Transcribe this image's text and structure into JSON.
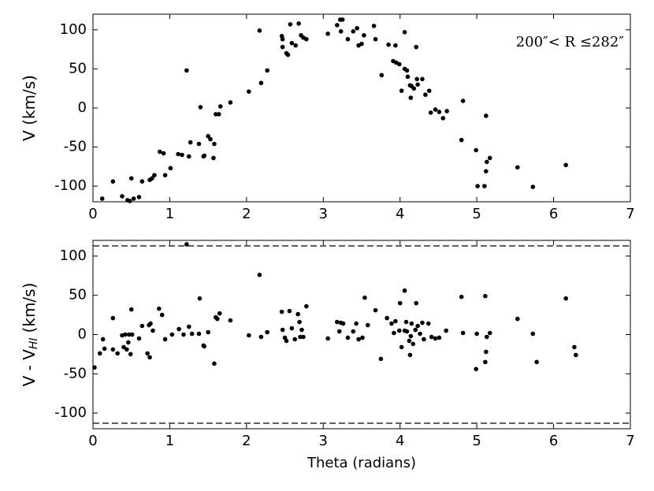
{
  "chart_data": [
    {
      "type": "scatter",
      "ylabel": "V (km/s)",
      "annotation": "200″< R  ≤282″",
      "color": "#000000",
      "xlim": [
        0,
        7
      ],
      "ylim": [
        -120,
        120
      ],
      "xticks": [
        0,
        1,
        2,
        3,
        4,
        5,
        6,
        7
      ],
      "yticks": [
        -100,
        -50,
        0,
        50,
        100
      ],
      "x": [
        0.12,
        0.26,
        0.38,
        0.45,
        0.48,
        0.5,
        0.53,
        0.6,
        0.64,
        0.74,
        0.77,
        0.8,
        0.87,
        0.92,
        0.94,
        1.01,
        1.11,
        1.16,
        1.22,
        1.25,
        1.27,
        1.38,
        1.4,
        1.44,
        1.45,
        1.5,
        1.53,
        1.57,
        1.58,
        1.6,
        1.64,
        1.66,
        1.79,
        2.03,
        2.17,
        2.19,
        2.27,
        2.46,
        2.47,
        2.47,
        2.52,
        2.54,
        2.57,
        2.59,
        2.64,
        2.68,
        2.71,
        2.74,
        2.78,
        3.06,
        3.18,
        3.22,
        3.25,
        3.23,
        3.32,
        3.39,
        3.44,
        3.46,
        3.5,
        3.53,
        3.66,
        3.68,
        3.76,
        3.85,
        3.91,
        3.94,
        3.95,
        3.99,
        4.02,
        4.06,
        4.06,
        4.09,
        4.1,
        4.14,
        4.13,
        4.15,
        4.18,
        4.21,
        4.22,
        4.23,
        4.29,
        4.33,
        4.38,
        4.4,
        4.46,
        4.51,
        4.56,
        4.61,
        4.82,
        4.8,
        4.99,
        5.01,
        5.1,
        5.12,
        5.13,
        5.12,
        5.17,
        5.53,
        5.73,
        6.16
      ],
      "values": [
        -116,
        -94,
        -113,
        -118,
        -119,
        -90,
        -116,
        -114,
        -94,
        -92,
        -90,
        -86,
        -56,
        -58,
        -86,
        -77,
        -59,
        -60,
        48,
        -62,
        -44,
        -46,
        1,
        -62,
        -61,
        -36,
        -40,
        -64,
        -46,
        -8,
        -8,
        2,
        7,
        21,
        99,
        32,
        48,
        92,
        88,
        78,
        70,
        68,
        107,
        83,
        80,
        108,
        93,
        90,
        88,
        95,
        106,
        113,
        113,
        98,
        88,
        98,
        102,
        80,
        82,
        93,
        105,
        88,
        42,
        81,
        60,
        80,
        58,
        56,
        22,
        97,
        50,
        48,
        40,
        13,
        29,
        28,
        25,
        78,
        37,
        30,
        37,
        17,
        22,
        -6,
        -2,
        -5,
        -13,
        -4,
        9,
        -41,
        -54,
        -100,
        -100,
        -81,
        -69,
        -10,
        -64,
        -76,
        -101,
        -73
      ]
    },
    {
      "type": "scatter",
      "xlabel": "Theta (radians)",
      "ylabel": "V - V",
      "ylabel_sub": "HI",
      "ylabel_unit": "(km/s)",
      "color": "#000000",
      "xlim": [
        0,
        7
      ],
      "ylim": [
        -120,
        120
      ],
      "xticks": [
        0,
        1,
        2,
        3,
        4,
        5,
        6,
        7
      ],
      "yticks": [
        -100,
        -50,
        0,
        50,
        100
      ],
      "hlines": [
        113,
        -113
      ],
      "x": [
        0.02,
        0.09,
        0.13,
        0.15,
        0.26,
        0.26,
        0.32,
        0.38,
        0.4,
        0.42,
        0.44,
        0.46,
        0.49,
        0.47,
        0.5,
        0.51,
        0.6,
        0.64,
        0.71,
        0.73,
        0.74,
        0.75,
        0.78,
        0.86,
        0.9,
        0.94,
        1.03,
        1.12,
        1.18,
        1.22,
        1.25,
        1.29,
        1.39,
        1.38,
        1.44,
        1.45,
        1.5,
        1.58,
        1.6,
        1.62,
        1.65,
        1.79,
        2.03,
        2.17,
        2.19,
        2.27,
        2.46,
        2.47,
        2.5,
        2.52,
        2.56,
        2.59,
        2.63,
        2.69,
        2.67,
        2.7,
        2.72,
        2.74,
        2.78,
        3.06,
        3.18,
        3.21,
        3.23,
        3.26,
        3.32,
        3.39,
        3.43,
        3.46,
        3.51,
        3.54,
        3.58,
        3.68,
        3.75,
        3.83,
        3.89,
        3.92,
        3.94,
        3.99,
        4.0,
        4.02,
        4.06,
        4.06,
        4.08,
        4.09,
        4.13,
        4.12,
        4.14,
        4.15,
        4.17,
        4.2,
        4.21,
        4.23,
        4.26,
        4.29,
        4.31,
        4.37,
        4.41,
        4.46,
        4.51,
        4.6,
        4.8,
        4.82,
        4.99,
        5.0,
        5.11,
        5.11,
        5.12,
        5.13,
        5.17,
        5.53,
        5.73,
        5.78,
        6.16,
        6.27,
        6.29
      ],
      "values": [
        -42,
        -24,
        -6,
        -18,
        21,
        -19,
        -24,
        -1,
        -16,
        0,
        -19,
        -10,
        -25,
        0,
        32,
        0,
        -5,
        11,
        -24,
        12,
        -29,
        14,
        5,
        33,
        25,
        -6,
        0,
        7,
        0,
        115,
        10,
        1,
        46,
        1,
        -14,
        -15,
        3,
        -37,
        22,
        20,
        27,
        18,
        -1,
        76,
        -3,
        3,
        29,
        6,
        -4,
        -8,
        30,
        8,
        -6,
        16,
        26,
        -3,
        6,
        -3,
        36,
        -5,
        16,
        4,
        15,
        14,
        -4,
        4,
        14,
        -6,
        -4,
        47,
        12,
        31,
        -31,
        21,
        14,
        2,
        17,
        5,
        40,
        -16,
        56,
        5,
        16,
        4,
        -26,
        -8,
        -2,
        14,
        -12,
        6,
        40,
        11,
        1,
        15,
        -6,
        14,
        -3,
        -5,
        -4,
        5,
        48,
        2,
        -44,
        1,
        49,
        -35,
        -22,
        -3,
        2,
        20,
        1,
        -35,
        46,
        -16,
        -26
      ]
    }
  ]
}
